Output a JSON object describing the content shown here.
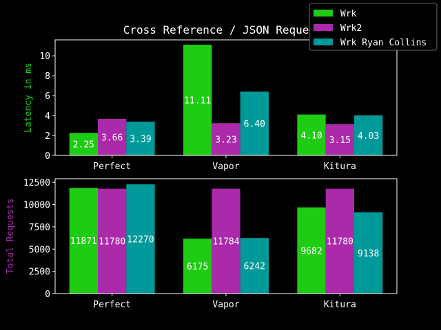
{
  "chart_data": [
    {
      "type": "bar",
      "title": "Cross Reference / JSON Requests",
      "xlabel": "",
      "ylabel": "Latency in ms",
      "ylabel_color": "#1ecc14",
      "categories": [
        "Perfect",
        "Vapor",
        "Kitura"
      ],
      "series": [
        {
          "name": "Wrk",
          "color": "#1ecc14",
          "values": [
            2.25,
            11.11,
            4.1
          ],
          "labels": [
            "2.25",
            "11.11",
            "4.10"
          ]
        },
        {
          "name": "Wrk2",
          "color": "#aa2aaa",
          "values": [
            3.66,
            3.23,
            3.15
          ],
          "labels": [
            "3.66",
            "3.23",
            "3.15"
          ]
        },
        {
          "name": "Wrk Ryan Collins",
          "color": "#009999",
          "values": [
            3.39,
            6.4,
            4.03
          ],
          "labels": [
            "3.39",
            "6.40",
            "4.03"
          ]
        }
      ],
      "ylim": [
        0,
        11.6
      ],
      "yticks": [
        0,
        2,
        4,
        6,
        8,
        10
      ],
      "ytick_labels": [
        "0",
        "2",
        "4",
        "6",
        "8",
        "10"
      ],
      "grid": false,
      "legend": "top-right"
    },
    {
      "type": "bar",
      "title": "",
      "xlabel": "",
      "ylabel": "Total Requests",
      "ylabel_color": "#aa2aaa",
      "categories": [
        "Perfect",
        "Vapor",
        "Kitura"
      ],
      "series": [
        {
          "name": "Wrk",
          "color": "#1ecc14",
          "values": [
            11871,
            6175,
            9682
          ],
          "labels": [
            "11871",
            "6175",
            "9682"
          ]
        },
        {
          "name": "Wrk2",
          "color": "#aa2aaa",
          "values": [
            11780,
            11784,
            11780
          ],
          "labels": [
            "11780",
            "11784",
            "11780"
          ]
        },
        {
          "name": "Wrk Ryan Collins",
          "color": "#009999",
          "values": [
            12270,
            6242,
            9138
          ],
          "labels": [
            "12270",
            "6242",
            "9138"
          ]
        }
      ],
      "ylim": [
        0,
        12900
      ],
      "yticks": [
        0,
        2500,
        5000,
        7500,
        10000,
        12500
      ],
      "ytick_labels": [
        "0",
        "2500",
        "5000",
        "7500",
        "10000",
        "12500"
      ],
      "grid": false
    }
  ],
  "legend": {
    "items": [
      {
        "name": "Wrk",
        "color": "#1ecc14"
      },
      {
        "name": "Wrk2",
        "color": "#aa2aaa"
      },
      {
        "name": "Wrk Ryan Collins",
        "color": "#009999"
      }
    ]
  },
  "colors": {
    "background": "#000000",
    "axes": "#ffffff",
    "text": "#ffffff"
  }
}
